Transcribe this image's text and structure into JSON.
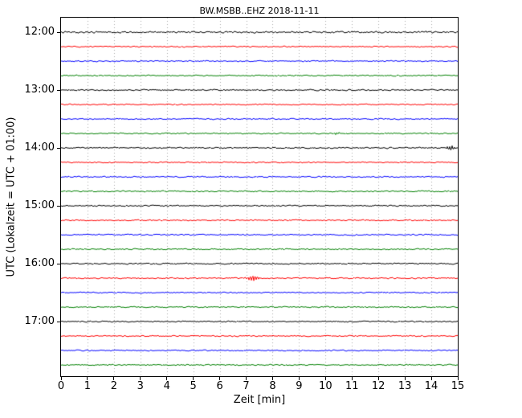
{
  "chart_data": {
    "type": "line",
    "subtype": "helicorder-dayplot",
    "title": "BW.MSBB..EHZ 2018-11-11",
    "xlabel": "Zeit [min]",
    "ylabel": "UTC (Lokalzeit = UTC + 01:00)",
    "xlim": [
      0,
      15
    ],
    "xticks": [
      0,
      1,
      2,
      3,
      4,
      5,
      6,
      7,
      8,
      9,
      10,
      11,
      12,
      13,
      14,
      15
    ],
    "yticks": [
      {
        "label": "12:00",
        "trace_index": 0
      },
      {
        "label": "13:00",
        "trace_index": 4
      },
      {
        "label": "14:00",
        "trace_index": 8
      },
      {
        "label": "15:00",
        "trace_index": 12
      },
      {
        "label": "16:00",
        "trace_index": 16
      },
      {
        "label": "17:00",
        "trace_index": 20
      }
    ],
    "minutes_per_line": 15,
    "color_cycle": [
      "#000000",
      "#ff0000",
      "#0000ff",
      "#008000"
    ],
    "grid": {
      "vertical_dotted": true,
      "color": "#aaaaaa"
    },
    "traces": [
      {
        "start": "12:00",
        "color": "#000000",
        "noise": 1.4
      },
      {
        "start": "12:15",
        "color": "#ff0000",
        "noise": 1.0
      },
      {
        "start": "12:30",
        "color": "#0000ff",
        "noise": 1.0
      },
      {
        "start": "12:45",
        "color": "#008000",
        "noise": 1.0
      },
      {
        "start": "13:00",
        "color": "#000000",
        "noise": 1.1
      },
      {
        "start": "13:15",
        "color": "#ff0000",
        "noise": 1.0
      },
      {
        "start": "13:30",
        "color": "#0000ff",
        "noise": 1.0
      },
      {
        "start": "13:45",
        "color": "#008000",
        "noise": 1.0
      },
      {
        "start": "14:00",
        "color": "#000000",
        "noise": 1.1
      },
      {
        "start": "14:15",
        "color": "#ff0000",
        "noise": 1.0
      },
      {
        "start": "14:30",
        "color": "#0000ff",
        "noise": 1.0
      },
      {
        "start": "14:45",
        "color": "#008000",
        "noise": 1.0
      },
      {
        "start": "15:00",
        "color": "#000000",
        "noise": 1.0
      },
      {
        "start": "15:15",
        "color": "#ff0000",
        "noise": 1.0
      },
      {
        "start": "15:30",
        "color": "#0000ff",
        "noise": 1.0
      },
      {
        "start": "15:45",
        "color": "#008000",
        "noise": 1.0
      },
      {
        "start": "16:00",
        "color": "#000000",
        "noise": 1.1
      },
      {
        "start": "16:15",
        "color": "#ff0000",
        "noise": 1.0
      },
      {
        "start": "16:30",
        "color": "#0000ff",
        "noise": 1.0
      },
      {
        "start": "16:45",
        "color": "#008000",
        "noise": 1.0
      },
      {
        "start": "17:00",
        "color": "#000000",
        "noise": 1.0
      },
      {
        "start": "17:15",
        "color": "#ff0000",
        "noise": 1.0
      },
      {
        "start": "17:30",
        "color": "#0000ff",
        "noise": 1.0
      },
      {
        "start": "17:45",
        "color": "#008000",
        "noise": 1.0
      }
    ],
    "events": [
      {
        "trace_index": 7,
        "trace_start": "13:45",
        "minute": 10.4,
        "amplitude": 1.8,
        "width_min": 0.12
      },
      {
        "trace_index": 8,
        "trace_start": "14:00",
        "minute": 14.75,
        "amplitude": 2.6,
        "width_min": 0.15
      },
      {
        "trace_index": 17,
        "trace_start": "16:15",
        "minute": 7.25,
        "amplitude": 3.6,
        "width_min": 0.18
      }
    ]
  }
}
